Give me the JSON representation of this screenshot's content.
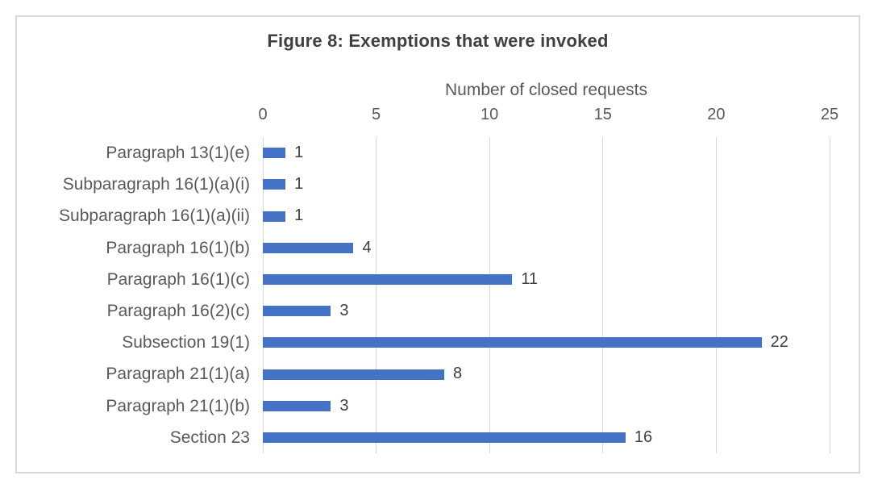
{
  "figure": {
    "title": "Figure 8: Exemptions that were invoked",
    "x_axis_title": "Number of closed requests"
  },
  "chart_data": {
    "type": "bar",
    "orientation": "horizontal",
    "title": "Figure 8: Exemptions that were invoked",
    "xlabel": "Number of closed requests",
    "ylabel": "",
    "categories": [
      "Paragraph 13(1)(e)",
      "Subparagraph 16(1)(a)(i)",
      "Subparagraph 16(1)(a)(ii)",
      "Paragraph 16(1)(b)",
      "Paragraph 16(1)(c)",
      "Paragraph 16(2)(c)",
      "Subsection 19(1)",
      "Paragraph 21(1)(a)",
      "Paragraph 21(1)(b)",
      "Section 23"
    ],
    "values": [
      1,
      1,
      1,
      4,
      11,
      3,
      22,
      8,
      3,
      16
    ],
    "xlim": [
      0,
      25
    ],
    "xticks": [
      "0",
      "5",
      "10",
      "15",
      "20",
      "25"
    ],
    "xtick_values": [
      0,
      5,
      10,
      15,
      20,
      25
    ],
    "grid": "vertical",
    "legend": "none",
    "data_labels": [
      1,
      1,
      1,
      4,
      11,
      3,
      22,
      8,
      3,
      16
    ]
  },
  "colors": {
    "bar": "#4472C4",
    "frame_border": "#D9D9D9",
    "gridline": "#D9D9D9",
    "title_text": "#404040",
    "axis_text": "#595959",
    "data_label_text": "#404040"
  }
}
